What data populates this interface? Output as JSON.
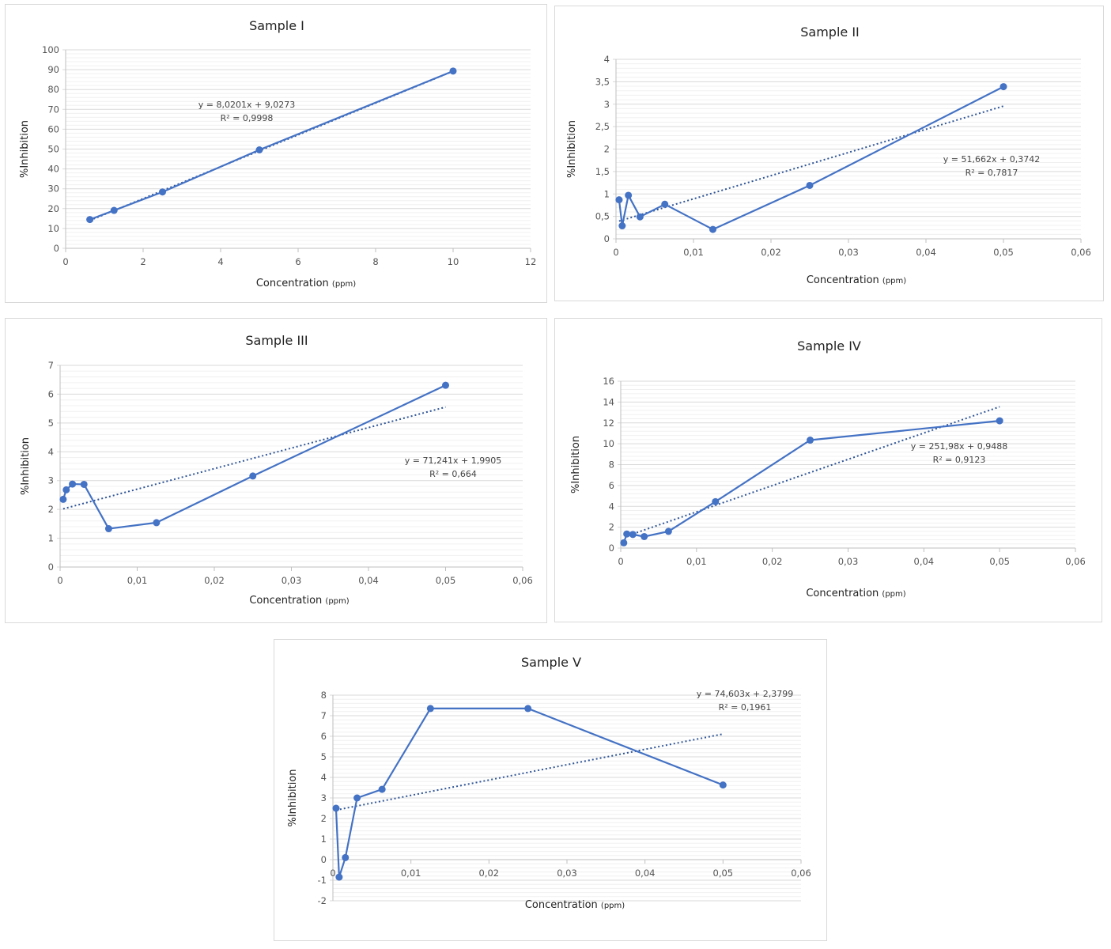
{
  "chart_data": [
    {
      "type": "line",
      "title": "Sample I",
      "xlabel": "Concentration",
      "xlabel_unit": "(ppm)",
      "ylabel": "%Inhibition",
      "xlim": [
        0,
        12
      ],
      "ylim": [
        0,
        100
      ],
      "xticks": [
        0,
        2,
        4,
        6,
        8,
        10,
        12
      ],
      "yticks": [
        0,
        10,
        20,
        30,
        40,
        50,
        60,
        70,
        80,
        90,
        100
      ],
      "x_tick_labels": [
        "0",
        "2",
        "4",
        "6",
        "8",
        "10",
        "12"
      ],
      "y_tick_labels": [
        "0",
        "10",
        "20",
        "30",
        "40",
        "50",
        "60",
        "70",
        "80",
        "90",
        "100"
      ],
      "grid": true,
      "series": [
        {
          "name": "Sample I",
          "x": [
            0.625,
            1.25,
            2.5,
            5,
            10
          ],
          "y": [
            14.5,
            19.1,
            28.4,
            49.6,
            89.3
          ]
        }
      ],
      "trendline": {
        "slope": 8.0201,
        "intercept": 9.0273,
        "x_range": [
          0.625,
          10
        ],
        "equation": "y = 8,0201x + 9,0273",
        "r2": "R² = 0,9998"
      }
    },
    {
      "type": "line",
      "title": "Sample II",
      "xlabel": "Concentration",
      "xlabel_unit": "(ppm)",
      "ylabel": "%Inhibition",
      "xlim": [
        0,
        0.06
      ],
      "ylim": [
        0,
        4
      ],
      "xticks": [
        0,
        0.01,
        0.02,
        0.03,
        0.04,
        0.05,
        0.06
      ],
      "yticks": [
        0,
        0.5,
        1,
        1.5,
        2,
        2.5,
        3,
        3.5,
        4
      ],
      "x_tick_labels": [
        "0",
        "0,01",
        "0,02",
        "0,03",
        "0,04",
        "0,05",
        "0,06"
      ],
      "y_tick_labels": [
        "0",
        "0,5",
        "1",
        "1,5",
        "2",
        "2,5",
        "3",
        "3,5",
        "4"
      ],
      "grid": true,
      "series": [
        {
          "name": "Sample II",
          "x": [
            0.0004,
            0.0008,
            0.0016,
            0.0031,
            0.0063,
            0.0125,
            0.025,
            0.05
          ],
          "y": [
            0.87,
            0.29,
            0.97,
            0.49,
            0.77,
            0.21,
            1.19,
            3.39
          ]
        }
      ],
      "trendline": {
        "slope": 51.662,
        "intercept": 0.3742,
        "x_range": [
          0.0004,
          0.05
        ],
        "equation": "y = 51,662x + 0,3742",
        "r2": "R² = 0,7817"
      }
    },
    {
      "type": "line",
      "title": "Sample III",
      "xlabel": "Concentration",
      "xlabel_unit": "(ppm)",
      "ylabel": "%Inhibition",
      "xlim": [
        0,
        0.06
      ],
      "ylim": [
        0,
        7
      ],
      "xticks": [
        0,
        0.01,
        0.02,
        0.03,
        0.04,
        0.05,
        0.06
      ],
      "yticks": [
        0,
        1,
        2,
        3,
        4,
        5,
        6,
        7
      ],
      "x_tick_labels": [
        "0",
        "0,01",
        "0,02",
        "0,03",
        "0,04",
        "0,05",
        "0,06"
      ],
      "y_tick_labels": [
        "0",
        "1",
        "2",
        "3",
        "4",
        "5",
        "6",
        "7"
      ],
      "grid": true,
      "series": [
        {
          "name": "Sample III",
          "x": [
            0.0004,
            0.0008,
            0.0016,
            0.0031,
            0.0063,
            0.0125,
            0.025,
            0.05
          ],
          "y": [
            2.35,
            2.68,
            2.88,
            2.87,
            1.33,
            1.54,
            3.16,
            6.31
          ]
        }
      ],
      "trendline": {
        "slope": 71.241,
        "intercept": 1.9905,
        "x_range": [
          0.0004,
          0.05
        ],
        "equation": "y = 71,241x + 1,9905",
        "r2": "R² = 0,664"
      }
    },
    {
      "type": "line",
      "title": "Sample IV",
      "xlabel": "Concentration",
      "xlabel_unit": "(ppm)",
      "ylabel": "%Inhibition",
      "xlim": [
        0,
        0.06
      ],
      "ylim": [
        0,
        16
      ],
      "xticks": [
        0,
        0.01,
        0.02,
        0.03,
        0.04,
        0.05,
        0.06
      ],
      "yticks": [
        0,
        2,
        4,
        6,
        8,
        10,
        12,
        14,
        16
      ],
      "x_tick_labels": [
        "0",
        "0,01",
        "0,02",
        "0,03",
        "0,04",
        "0,05",
        "0,06"
      ],
      "y_tick_labels": [
        "0",
        "2",
        "4",
        "6",
        "8",
        "10",
        "12",
        "14",
        "16"
      ],
      "grid": true,
      "series": [
        {
          "name": "Sample IV",
          "x": [
            0.0004,
            0.0008,
            0.0016,
            0.0031,
            0.0063,
            0.0125,
            0.025,
            0.05
          ],
          "y": [
            0.5,
            1.35,
            1.3,
            1.1,
            1.6,
            4.45,
            10.35,
            12.2
          ]
        }
      ],
      "trendline": {
        "slope": 251.98,
        "intercept": 0.9488,
        "x_range": [
          0.0016,
          0.05
        ],
        "equation": "y = 251,98x + 0,9488",
        "r2": "R² = 0,9123"
      }
    },
    {
      "type": "line",
      "title": "Sample V",
      "xlabel": "Concentration",
      "xlabel_unit": "(ppm)",
      "ylabel": "%Inhibition",
      "xlim": [
        0,
        0.06
      ],
      "ylim": [
        -2,
        8
      ],
      "xticks": [
        0,
        0.01,
        0.02,
        0.03,
        0.04,
        0.05,
        0.06
      ],
      "yticks": [
        -2,
        -1,
        0,
        1,
        2,
        3,
        4,
        5,
        6,
        7,
        8
      ],
      "x_tick_labels": [
        "0",
        "0,01",
        "0,02",
        "0,03",
        "0,04",
        "0,05",
        "0,06"
      ],
      "y_tick_labels": [
        "-2",
        "-1",
        "0",
        "1",
        "2",
        "3",
        "4",
        "5",
        "6",
        "7",
        "8"
      ],
      "grid": true,
      "series": [
        {
          "name": "Sample V",
          "x": [
            0.0004,
            0.0008,
            0.0016,
            0.0031,
            0.0063,
            0.0125,
            0.025,
            0.05
          ],
          "y": [
            2.5,
            -0.85,
            0.1,
            3.0,
            3.42,
            7.35,
            7.35,
            3.63
          ]
        }
      ],
      "trendline": {
        "slope": 74.603,
        "intercept": 2.3799,
        "x_range": [
          0.0004,
          0.05
        ],
        "equation": "y = 74,603x + 2,3799",
        "r2": "R² = 0,1961"
      }
    }
  ],
  "colors": {
    "series": "#4472c4",
    "trend": "#2f5597",
    "grid_major": "#d9d9d9",
    "grid_minor": "#f0f0f0",
    "axis": "#bfbfbf"
  }
}
